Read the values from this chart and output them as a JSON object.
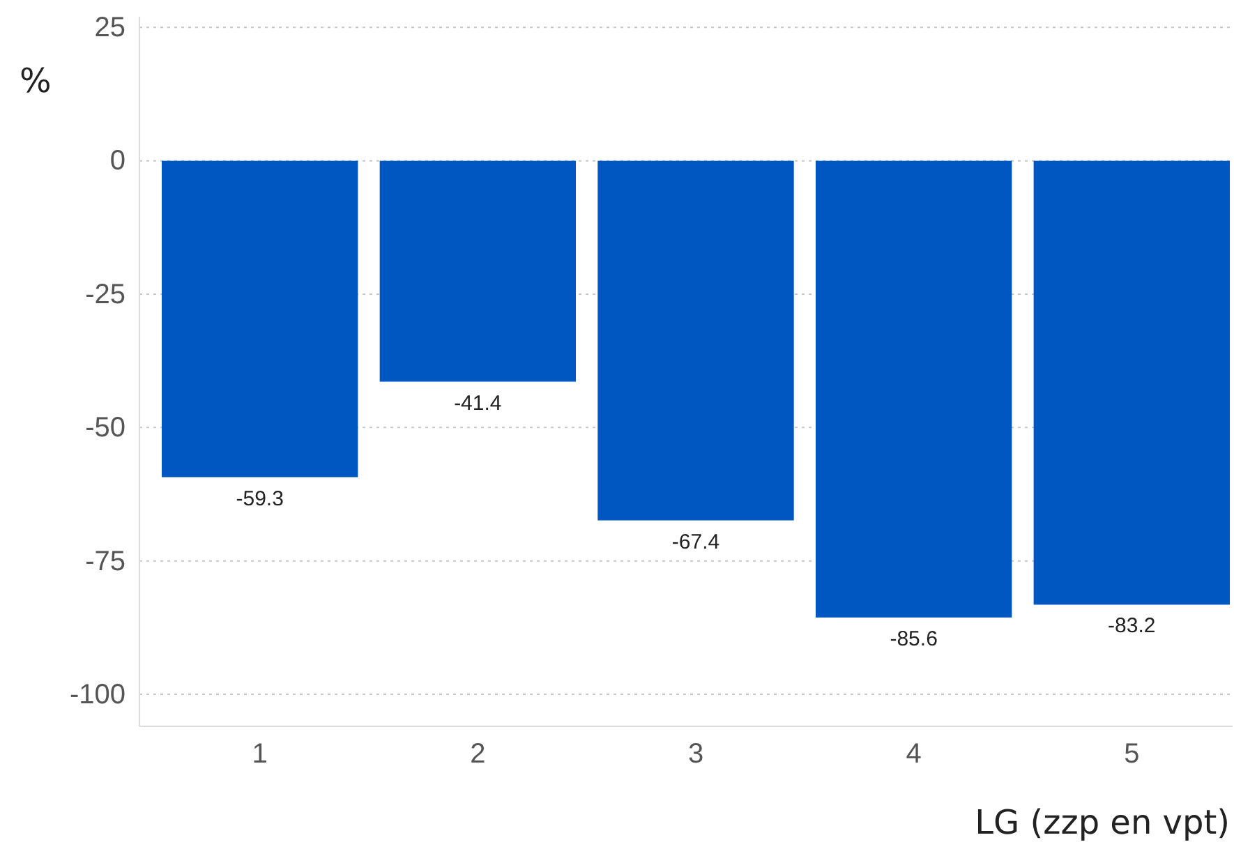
{
  "chart_data": {
    "type": "bar",
    "categories": [
      "1",
      "2",
      "3",
      "4",
      "5"
    ],
    "values": [
      -59.3,
      -41.4,
      -67.4,
      -85.6,
      -83.2
    ],
    "color": "#0057c2",
    "ylabel": "%",
    "xlabel": "LG (zzp en vpt)",
    "ylim": [
      -106,
      27
    ],
    "yticks": [
      25,
      0,
      -25,
      -50,
      -75,
      -100
    ],
    "grid": "y",
    "data_labels": true
  }
}
